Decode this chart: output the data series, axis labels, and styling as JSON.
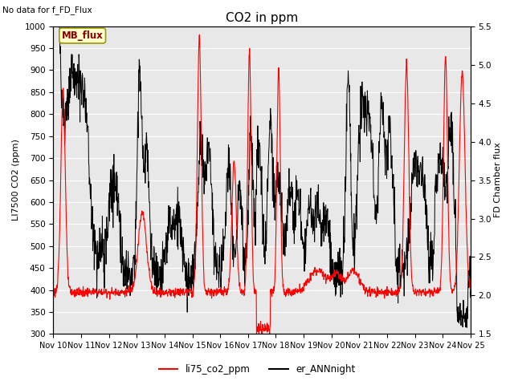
{
  "title": "CO2 in ppm",
  "topleft_text": "No data for f_FD_Flux",
  "mb_flux_label": "MB_flux",
  "ylabel_left": "LI7500 CO2 (ppm)",
  "ylabel_right": "FD Chamber flux",
  "ylim_left": [
    300,
    1000
  ],
  "ylim_right": [
    1.5,
    5.5
  ],
  "xtick_labels": [
    "Nov 10",
    "Nov 11",
    "Nov 12",
    "Nov 13",
    "Nov 14",
    "Nov 15",
    "Nov 16",
    "Nov 17",
    "Nov 18",
    "Nov 19",
    "Nov 20",
    "Nov 21",
    "Nov 22",
    "Nov 23",
    "Nov 24",
    "Nov 25"
  ],
  "legend_labels": [
    "li75_co2_ppm",
    "er_ANNnight"
  ],
  "line_colors": [
    "red",
    "black"
  ],
  "plot_bg_color": "#e8e8e8",
  "grid_color": "#d0d0d0",
  "title_fontsize": 11,
  "label_fontsize": 8,
  "tick_fontsize": 7.5
}
